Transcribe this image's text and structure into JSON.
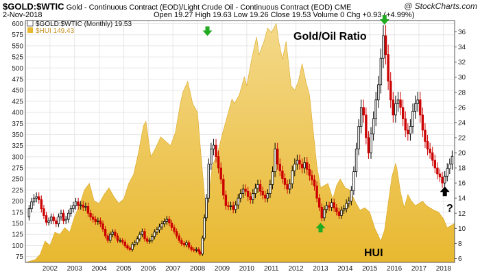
{
  "header": {
    "symbol": "$GOLD:$WTIC",
    "description": "Gold - Continuous Contract (EOD)/Light Crude Oil - Continuous Contract (EOD)  CME",
    "date": "2-Nov-2018",
    "ohlc": "Open 19.27  High 19.63  Low 19.26  Close 19.53  Volume 0   Chg +0.93 (+4.99%)",
    "logo": "@ StockCharts.com"
  },
  "legend": {
    "primary": "$GOLD:$WTIC (Monthly) 19.53",
    "secondary": "$HUI 149.43"
  },
  "colors": {
    "up": "#000000",
    "down": "#cc0000",
    "hui_fill": "#e8b830",
    "hui_light": "#f4d98a",
    "gridline": "#e6e6e6",
    "arrow_green": "#22aa22",
    "arrow_black": "#000000"
  },
  "chart_data": {
    "type": "line",
    "annotations": [
      {
        "text": "Gold/Oil Ratio",
        "kind": "title-label"
      },
      {
        "text": "HUI",
        "kind": "area-label"
      },
      {
        "text": "?",
        "kind": "question"
      }
    ],
    "arrows": [
      {
        "date": 2008.9,
        "value": 36,
        "direction": "down",
        "color": "green"
      },
      {
        "date": 2013.5,
        "value": 10.2,
        "direction": "up",
        "color": "green"
      },
      {
        "date": 2016.1,
        "value": 37.5,
        "direction": "down",
        "color": "green"
      },
      {
        "date": 2018.55,
        "value": 15,
        "direction": "up",
        "color": "black"
      }
    ],
    "x_axis": {
      "ticks": [
        "2002",
        "2003",
        "2004",
        "2005",
        "2006",
        "2007",
        "2008",
        "2009",
        "2010",
        "2011",
        "2012",
        "2013",
        "2014",
        "2015",
        "2016",
        "2017",
        "2018"
      ],
      "range": [
        2001.5,
        2018.95
      ]
    },
    "left_axis": {
      "series": "$HUI",
      "ticks": [
        75,
        100,
        125,
        150,
        175,
        200,
        225,
        250,
        275,
        300,
        325,
        350,
        375,
        400,
        425,
        450,
        475,
        500,
        525,
        550,
        575,
        600
      ],
      "range": [
        62,
        607
      ]
    },
    "right_axis": {
      "series": "$GOLD:$WTIC",
      "ticks": [
        6,
        8,
        10,
        12,
        14,
        16,
        18,
        20,
        22,
        24,
        26,
        28,
        30,
        32,
        34,
        36
      ],
      "range": [
        5.5,
        37.5
      ]
    },
    "hui": {
      "name": "$HUI",
      "points": [
        [
          2001.5,
          62
        ],
        [
          2001.7,
          65
        ],
        [
          2001.9,
          68
        ],
        [
          2002.1,
          80
        ],
        [
          2002.3,
          110
        ],
        [
          2002.5,
          100
        ],
        [
          2002.7,
          130
        ],
        [
          2002.9,
          125
        ],
        [
          2003.1,
          140
        ],
        [
          2003.3,
          130
        ],
        [
          2003.5,
          165
        ],
        [
          2003.7,
          190
        ],
        [
          2003.9,
          225
        ],
        [
          2004.1,
          240
        ],
        [
          2004.3,
          200
        ],
        [
          2004.5,
          195
        ],
        [
          2004.7,
          215
        ],
        [
          2004.9,
          230
        ],
        [
          2005.1,
          210
        ],
        [
          2005.3,
          195
        ],
        [
          2005.5,
          205
        ],
        [
          2005.7,
          240
        ],
        [
          2005.9,
          260
        ],
        [
          2006.1,
          310
        ],
        [
          2006.3,
          370
        ],
        [
          2006.4,
          380
        ],
        [
          2006.6,
          300
        ],
        [
          2006.8,
          320
        ],
        [
          2007.0,
          345
        ],
        [
          2007.2,
          335
        ],
        [
          2007.4,
          325
        ],
        [
          2007.6,
          355
        ],
        [
          2007.8,
          420
        ],
        [
          2007.9,
          445
        ],
        [
          2008.1,
          470
        ],
        [
          2008.3,
          420
        ],
        [
          2008.5,
          400
        ],
        [
          2008.6,
          330
        ],
        [
          2008.75,
          235
        ],
        [
          2008.85,
          165
        ],
        [
          2008.95,
          210
        ],
        [
          2009.1,
          280
        ],
        [
          2009.3,
          305
        ],
        [
          2009.5,
          350
        ],
        [
          2009.7,
          390
        ],
        [
          2009.9,
          430
        ],
        [
          2010.0,
          420
        ],
        [
          2010.2,
          440
        ],
        [
          2010.4,
          480
        ],
        [
          2010.5,
          460
        ],
        [
          2010.7,
          520
        ],
        [
          2010.9,
          570
        ],
        [
          2011.0,
          530
        ],
        [
          2011.2,
          560
        ],
        [
          2011.35,
          590
        ],
        [
          2011.5,
          580
        ],
        [
          2011.7,
          600
        ],
        [
          2011.8,
          560
        ],
        [
          2011.95,
          520
        ],
        [
          2012.1,
          560
        ],
        [
          2012.3,
          460
        ],
        [
          2012.45,
          450
        ],
        [
          2012.6,
          470
        ],
        [
          2012.75,
          510
        ],
        [
          2012.9,
          470
        ],
        [
          2013.05,
          440
        ],
        [
          2013.2,
          360
        ],
        [
          2013.35,
          280
        ],
        [
          2013.5,
          230
        ],
        [
          2013.65,
          235
        ],
        [
          2013.8,
          240
        ],
        [
          2014.0,
          205
        ],
        [
          2014.15,
          235
        ],
        [
          2014.3,
          250
        ],
        [
          2014.5,
          230
        ],
        [
          2014.7,
          225
        ],
        [
          2014.9,
          200
        ],
        [
          2015.1,
          180
        ],
        [
          2015.3,
          185
        ],
        [
          2015.5,
          175
        ],
        [
          2015.7,
          140
        ],
        [
          2015.95,
          110
        ],
        [
          2016.1,
          135
        ],
        [
          2016.25,
          195
        ],
        [
          2016.4,
          255
        ],
        [
          2016.55,
          285
        ],
        [
          2016.6,
          275
        ],
        [
          2016.75,
          220
        ],
        [
          2016.9,
          185
        ],
        [
          2017.05,
          215
        ],
        [
          2017.2,
          200
        ],
        [
          2017.35,
          190
        ],
        [
          2017.5,
          195
        ],
        [
          2017.65,
          200
        ],
        [
          2017.8,
          190
        ],
        [
          2017.95,
          185
        ],
        [
          2018.1,
          180
        ],
        [
          2018.3,
          175
        ],
        [
          2018.5,
          160
        ],
        [
          2018.65,
          140
        ],
        [
          2018.8,
          145
        ],
        [
          2018.95,
          150
        ]
      ]
    },
    "ratio": {
      "name": "$GOLD:$WTIC",
      "points": [
        [
          2001.55,
          11.5
        ],
        [
          2001.65,
          12.6
        ],
        [
          2001.75,
          13.5
        ],
        [
          2001.85,
          14.0
        ],
        [
          2001.95,
          14.2
        ],
        [
          2002.05,
          13.8
        ],
        [
          2002.15,
          12.6
        ],
        [
          2002.25,
          11.7
        ],
        [
          2002.35,
          10.8
        ],
        [
          2002.45,
          11.0
        ],
        [
          2002.55,
          11.5
        ],
        [
          2002.65,
          11.0
        ],
        [
          2002.75,
          10.6
        ],
        [
          2002.85,
          11.5
        ],
        [
          2002.95,
          12.0
        ],
        [
          2003.05,
          11.0
        ],
        [
          2003.15,
          11.2
        ],
        [
          2003.25,
          12.0
        ],
        [
          2003.35,
          12.6
        ],
        [
          2003.45,
          13.0
        ],
        [
          2003.55,
          13.5
        ],
        [
          2003.65,
          13.0
        ],
        [
          2003.75,
          13.1
        ],
        [
          2003.85,
          12.8
        ],
        [
          2003.95,
          12.9
        ],
        [
          2004.05,
          12.0
        ],
        [
          2004.15,
          11.5
        ],
        [
          2004.25,
          11.2
        ],
        [
          2004.35,
          10.9
        ],
        [
          2004.45,
          11.0
        ],
        [
          2004.55,
          10.6
        ],
        [
          2004.65,
          9.9
        ],
        [
          2004.75,
          9.0
        ],
        [
          2004.85,
          8.4
        ],
        [
          2004.95,
          9.2
        ],
        [
          2005.05,
          9.5
        ],
        [
          2005.15,
          9.0
        ],
        [
          2005.25,
          8.4
        ],
        [
          2005.35,
          8.4
        ],
        [
          2005.45,
          8.2
        ],
        [
          2005.55,
          7.7
        ],
        [
          2005.65,
          7.4
        ],
        [
          2005.75,
          7.2
        ],
        [
          2005.85,
          7.9
        ],
        [
          2005.95,
          8.1
        ],
        [
          2006.05,
          8.6
        ],
        [
          2006.15,
          9.2
        ],
        [
          2006.25,
          9.6
        ],
        [
          2006.35,
          8.6
        ],
        [
          2006.45,
          8.3
        ],
        [
          2006.55,
          8.4
        ],
        [
          2006.65,
          8.9
        ],
        [
          2006.75,
          9.5
        ],
        [
          2006.85,
          9.8
        ],
        [
          2006.95,
          10.2
        ],
        [
          2007.05,
          10.6
        ],
        [
          2007.15,
          10.9
        ],
        [
          2007.25,
          11.2
        ],
        [
          2007.35,
          10.7
        ],
        [
          2007.45,
          10.1
        ],
        [
          2007.55,
          9.6
        ],
        [
          2007.65,
          9.0
        ],
        [
          2007.75,
          8.4
        ],
        [
          2007.85,
          8.0
        ],
        [
          2007.95,
          7.8
        ],
        [
          2008.05,
          8.1
        ],
        [
          2008.15,
          7.5
        ],
        [
          2008.25,
          7.2
        ],
        [
          2008.35,
          7.1
        ],
        [
          2008.45,
          7.2
        ],
        [
          2008.55,
          6.9
        ],
        [
          2008.6,
          6.6
        ],
        [
          2008.7,
          8.7
        ],
        [
          2008.78,
          11.4
        ],
        [
          2008.86,
          14.0
        ],
        [
          2008.95,
          18.5
        ],
        [
          2009.05,
          20.5
        ],
        [
          2009.15,
          21.0
        ],
        [
          2009.25,
          19.5
        ],
        [
          2009.35,
          18.0
        ],
        [
          2009.45,
          16.5
        ],
        [
          2009.55,
          14.4
        ],
        [
          2009.65,
          13.0
        ],
        [
          2009.75,
          12.9
        ],
        [
          2009.85,
          13.0
        ],
        [
          2009.95,
          12.5
        ],
        [
          2010.05,
          13.1
        ],
        [
          2010.15,
          14.0
        ],
        [
          2010.25,
          14.6
        ],
        [
          2010.35,
          15.2
        ],
        [
          2010.45,
          14.9
        ],
        [
          2010.55,
          14.2
        ],
        [
          2010.65,
          13.8
        ],
        [
          2010.75,
          14.6
        ],
        [
          2010.85,
          15.3
        ],
        [
          2010.95,
          15.8
        ],
        [
          2011.05,
          14.9
        ],
        [
          2011.15,
          14.4
        ],
        [
          2011.25,
          14.0
        ],
        [
          2011.35,
          14.6
        ],
        [
          2011.45,
          15.8
        ],
        [
          2011.55,
          17.5
        ],
        [
          2011.65,
          20.5
        ],
        [
          2011.75,
          18.5
        ],
        [
          2011.85,
          17.6
        ],
        [
          2011.95,
          16.6
        ],
        [
          2012.05,
          15.8
        ],
        [
          2012.15,
          15.2
        ],
        [
          2012.25,
          15.9
        ],
        [
          2012.35,
          17.6
        ],
        [
          2012.45,
          18.5
        ],
        [
          2012.55,
          19.0
        ],
        [
          2012.65,
          18.5
        ],
        [
          2012.75,
          18.0
        ],
        [
          2012.85,
          18.7
        ],
        [
          2012.95,
          17.8
        ],
        [
          2013.05,
          17.0
        ],
        [
          2013.15,
          16.4
        ],
        [
          2013.25,
          15.6
        ],
        [
          2013.35,
          14.0
        ],
        [
          2013.45,
          12.8
        ],
        [
          2013.55,
          11.4
        ],
        [
          2013.65,
          12.5
        ],
        [
          2013.75,
          13.0
        ],
        [
          2013.85,
          12.8
        ],
        [
          2013.95,
          13.4
        ],
        [
          2014.05,
          12.7
        ],
        [
          2014.15,
          12.2
        ],
        [
          2014.25,
          11.7
        ],
        [
          2014.35,
          12.4
        ],
        [
          2014.45,
          12.6
        ],
        [
          2014.55,
          13.3
        ],
        [
          2014.65,
          13.6
        ],
        [
          2014.75,
          15.0
        ],
        [
          2014.85,
          17.5
        ],
        [
          2014.95,
          20.5
        ],
        [
          2015.05,
          23.5
        ],
        [
          2015.15,
          26.0
        ],
        [
          2015.25,
          25.0
        ],
        [
          2015.35,
          22.0
        ],
        [
          2015.45,
          20.0
        ],
        [
          2015.55,
          22.5
        ],
        [
          2015.65,
          24.5
        ],
        [
          2015.75,
          27.0
        ],
        [
          2015.85,
          29.0
        ],
        [
          2015.95,
          32.5
        ],
        [
          2016.05,
          35.5
        ],
        [
          2016.15,
          33.0
        ],
        [
          2016.25,
          29.5
        ],
        [
          2016.35,
          27.0
        ],
        [
          2016.45,
          25.0
        ],
        [
          2016.55,
          26.5
        ],
        [
          2016.65,
          27.0
        ],
        [
          2016.75,
          26.0
        ],
        [
          2016.85,
          24.5
        ],
        [
          2016.95,
          23.0
        ],
        [
          2017.05,
          22.5
        ],
        [
          2017.15,
          23.5
        ],
        [
          2017.25,
          25.5
        ],
        [
          2017.35,
          26.5
        ],
        [
          2017.45,
          27.0
        ],
        [
          2017.55,
          25.0
        ],
        [
          2017.65,
          23.0
        ],
        [
          2017.75,
          21.5
        ],
        [
          2017.85,
          20.5
        ],
        [
          2017.95,
          20.0
        ],
        [
          2018.05,
          19.0
        ],
        [
          2018.15,
          18.0
        ],
        [
          2018.25,
          17.2
        ],
        [
          2018.35,
          16.8
        ],
        [
          2018.45,
          16.0
        ],
        [
          2018.55,
          16.9
        ],
        [
          2018.65,
          17.9
        ],
        [
          2018.75,
          18.5
        ],
        [
          2018.85,
          19.53
        ]
      ]
    }
  }
}
